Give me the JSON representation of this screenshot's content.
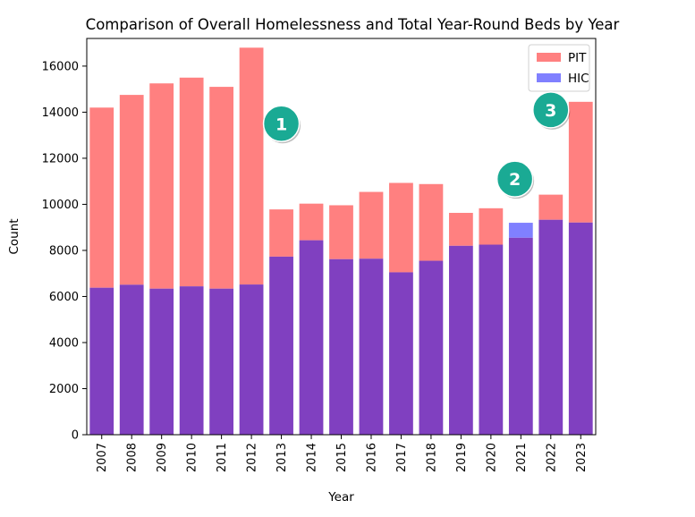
{
  "chart_data": {
    "type": "bar",
    "title": "Comparison of Overall Homelessness and Total Year-Round Beds by Year",
    "xlabel": "Year",
    "ylabel": "Count",
    "ylim": [
      0,
      17200
    ],
    "yticks": [
      0,
      2000,
      4000,
      6000,
      8000,
      10000,
      12000,
      14000,
      16000
    ],
    "grid": false,
    "legend_position": "top-right",
    "categories": [
      "2007",
      "2008",
      "2009",
      "2010",
      "2011",
      "2012",
      "2013",
      "2014",
      "2015",
      "2016",
      "2017",
      "2018",
      "2019",
      "2020",
      "2021",
      "2022",
      "2023"
    ],
    "series": [
      {
        "name": "PIT",
        "color": "#ff8080",
        "values": [
          14200,
          14750,
          15250,
          15500,
          15100,
          16800,
          9780,
          10030,
          9960,
          10540,
          10930,
          10880,
          9630,
          9830,
          8550,
          10420,
          14450
        ]
      },
      {
        "name": "HIC",
        "color": "#8080ff",
        "values": [
          6380,
          6510,
          6340,
          6440,
          6340,
          6520,
          7730,
          8440,
          7620,
          7640,
          7050,
          7550,
          8200,
          8250,
          9200,
          9330,
          9210
        ]
      }
    ],
    "overlap_color": "#8040c0",
    "annotations": [
      {
        "label": "1",
        "x": "2013",
        "y": 13500
      },
      {
        "label": "2",
        "x": "2020.8",
        "y": 11100
      },
      {
        "label": "3",
        "x": "2022",
        "y": 14100
      }
    ],
    "annotation_color": "#1aaa94"
  }
}
